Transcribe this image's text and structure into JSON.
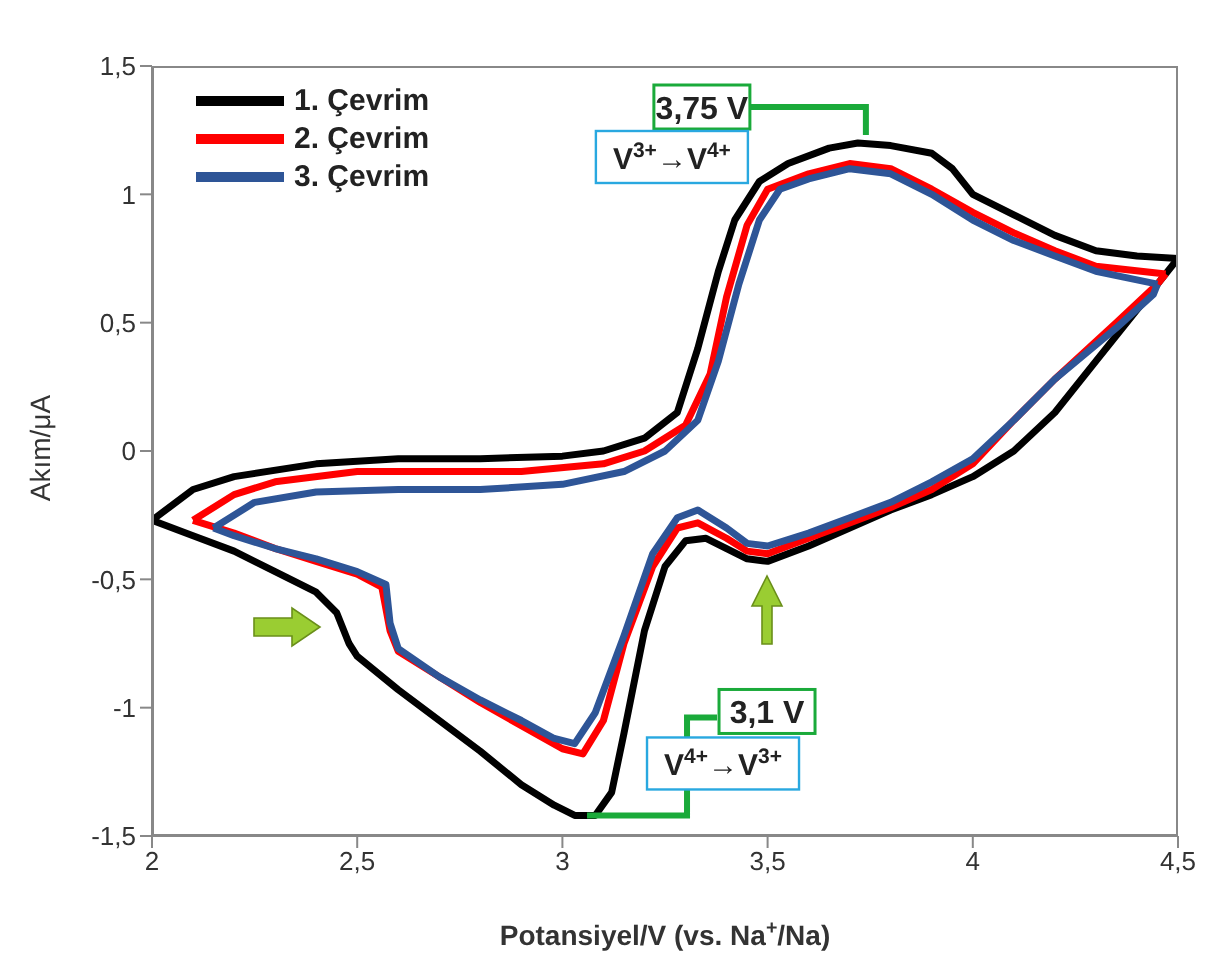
{
  "chart_data": {
    "type": "line",
    "xlabel": "Potansiyel/V (vs. Na$^{+}$/Na)",
    "ylabel": "Akım/μA",
    "xlim": [
      2,
      4.5
    ],
    "xticks": [
      2,
      {
        "value": 2.5,
        "label": "2,5"
      },
      3,
      {
        "value": 3.5,
        "label": "3,5"
      },
      4,
      {
        "value": 4.5,
        "label": "4,5"
      }
    ],
    "ylim": [
      -1.5,
      1.5
    ],
    "yticks": [
      {
        "value": -1.5,
        "label": "-1,5"
      },
      -1,
      {
        "value": -0.5,
        "label": "-0,5"
      },
      0,
      {
        "value": 0.5,
        "label": "0,5"
      },
      1,
      {
        "value": 1.5,
        "label": "1,5"
      }
    ],
    "grid": false,
    "legend": "top left",
    "marker": "none",
    "line_style": "solid",
    "annotations": [
      {
        "text": "3,75 V",
        "x": 3.72,
        "y": 1.2
      },
      "V$^{3+}$→V$^{4+}$",
      {
        "text": "3,1 V",
        "x": 3.06,
        "y": -1.42
      },
      "V$^{4+}$→V$^{3+}$"
    ],
    "series": [
      {
        "name": "1. Çevrim",
        "color": "#000000",
        "x": [
          2.0,
          2.1,
          2.2,
          2.4,
          2.6,
          2.8,
          3.0,
          3.1,
          3.2,
          3.28,
          3.33,
          3.38,
          3.42,
          3.48,
          3.55,
          3.65,
          3.72,
          3.8,
          3.9,
          3.95,
          4.0,
          4.1,
          4.2,
          4.3,
          4.4,
          4.5
        ],
        "values": [
          -0.27,
          -0.15,
          -0.1,
          -0.05,
          -0.03,
          -0.03,
          -0.02,
          0.0,
          0.05,
          0.15,
          0.4,
          0.7,
          0.9,
          1.05,
          1.12,
          1.18,
          1.2,
          1.19,
          1.16,
          1.1,
          1.0,
          0.92,
          0.84,
          0.78,
          0.76,
          0.75
        ]
      },
      {
        "color": "#000000",
        "x": [
          4.5,
          4.4,
          4.3,
          4.2,
          4.1,
          4.0,
          3.9,
          3.8,
          3.7,
          3.6,
          3.5,
          3.45,
          3.4,
          3.35,
          3.3,
          3.25,
          3.2,
          3.15,
          3.12,
          3.08,
          3.03,
          2.98,
          2.9,
          2.8,
          2.7,
          2.6,
          2.5,
          2.48,
          2.45,
          2.4,
          2.3,
          2.2,
          2.1,
          2.0
        ],
        "values": [
          0.75,
          0.55,
          0.35,
          0.15,
          0.0,
          -0.1,
          -0.17,
          -0.23,
          -0.3,
          -0.37,
          -0.43,
          -0.42,
          -0.38,
          -0.34,
          -0.35,
          -0.45,
          -0.7,
          -1.1,
          -1.33,
          -1.42,
          -1.42,
          -1.38,
          -1.3,
          -1.17,
          -1.05,
          -0.93,
          -0.8,
          -0.75,
          -0.63,
          -0.55,
          -0.47,
          -0.39,
          -0.33,
          -0.27
        ]
      },
      {
        "name": "2. Çevrim",
        "color": "#ff0000",
        "x": [
          2.1,
          2.2,
          2.3,
          2.5,
          2.7,
          2.9,
          3.1,
          3.2,
          3.3,
          3.36,
          3.4,
          3.45,
          3.5,
          3.6,
          3.7,
          3.8,
          3.9,
          4.0,
          4.1,
          4.2,
          4.3,
          4.47
        ],
        "values": [
          -0.27,
          -0.17,
          -0.12,
          -0.08,
          -0.08,
          -0.08,
          -0.05,
          0.0,
          0.1,
          0.3,
          0.6,
          0.88,
          1.02,
          1.08,
          1.12,
          1.1,
          1.02,
          0.93,
          0.85,
          0.78,
          0.72,
          0.69
        ]
      },
      {
        "color": "#ff0000",
        "x": [
          4.47,
          4.45,
          4.35,
          4.2,
          4.1,
          4.0,
          3.9,
          3.8,
          3.7,
          3.6,
          3.5,
          3.45,
          3.4,
          3.33,
          3.28,
          3.22,
          3.15,
          3.1,
          3.05,
          3.0,
          2.9,
          2.8,
          2.7,
          2.6,
          2.58,
          2.56,
          2.5,
          2.4,
          2.3,
          2.2,
          2.1
        ],
        "values": [
          0.69,
          0.65,
          0.5,
          0.28,
          0.12,
          -0.05,
          -0.15,
          -0.22,
          -0.28,
          -0.34,
          -0.4,
          -0.39,
          -0.34,
          -0.28,
          -0.3,
          -0.45,
          -0.75,
          -1.05,
          -1.18,
          -1.16,
          -1.07,
          -0.98,
          -0.88,
          -0.78,
          -0.7,
          -0.53,
          -0.48,
          -0.43,
          -0.38,
          -0.32,
          -0.27
        ]
      },
      {
        "name": "3. Çevrim",
        "color": "#2e5597",
        "x": [
          2.15,
          2.25,
          2.4,
          2.6,
          2.8,
          3.0,
          3.15,
          3.25,
          3.33,
          3.38,
          3.43,
          3.48,
          3.53,
          3.6,
          3.7,
          3.8,
          3.9,
          4.0,
          4.1,
          4.2,
          4.3,
          4.45
        ],
        "values": [
          -0.3,
          -0.2,
          -0.16,
          -0.15,
          -0.15,
          -0.13,
          -0.08,
          0.0,
          0.12,
          0.35,
          0.65,
          0.9,
          1.02,
          1.06,
          1.1,
          1.08,
          1.0,
          0.9,
          0.82,
          0.76,
          0.7,
          0.65
        ]
      },
      {
        "color": "#2e5597",
        "x": [
          4.45,
          4.44,
          4.35,
          4.2,
          4.1,
          4.0,
          3.9,
          3.8,
          3.7,
          3.6,
          3.5,
          3.45,
          3.4,
          3.33,
          3.28,
          3.22,
          3.15,
          3.08,
          3.03,
          2.98,
          2.9,
          2.8,
          2.7,
          2.6,
          2.58,
          2.57,
          2.5,
          2.4,
          2.3,
          2.2,
          2.15
        ],
        "values": [
          0.65,
          0.61,
          0.48,
          0.28,
          0.12,
          -0.03,
          -0.12,
          -0.2,
          -0.26,
          -0.32,
          -0.37,
          -0.36,
          -0.3,
          -0.23,
          -0.26,
          -0.4,
          -0.72,
          -1.02,
          -1.14,
          -1.12,
          -1.05,
          -0.97,
          -0.88,
          -0.77,
          -0.67,
          -0.52,
          -0.47,
          -0.42,
          -0.38,
          -0.33,
          -0.3
        ]
      }
    ]
  }
}
